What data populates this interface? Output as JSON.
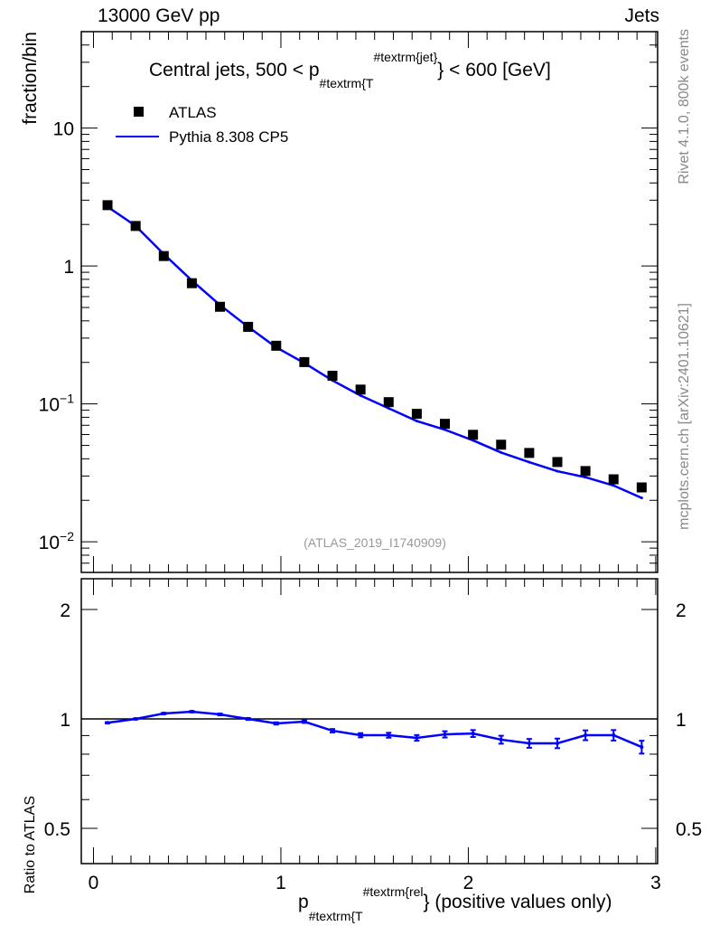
{
  "header": {
    "left": "13000 GeV pp",
    "right": "Jets"
  },
  "side_labels": {
    "top": "Rivet 4.1.0,  800k events",
    "bottom": "mcplots.cern.ch [arXiv:2401.10621]"
  },
  "chart_data": [
    {
      "type": "scatter",
      "title": "Central jets, 500 < p",
      "title_sub": "#textrm{T",
      "title_sup": "#textrm{jet}",
      "title_tail": "} < 600 [GeV]",
      "ylabel": "fraction/bin",
      "yscale": "log",
      "ylim": [
        0.006,
        50
      ],
      "xlim": [
        -0.065,
        3.01
      ],
      "yticks": [
        {
          "v": 0.01,
          "base": "10",
          "exp": "−2"
        },
        {
          "v": 0.1,
          "base": "10",
          "exp": "−1"
        },
        {
          "v": 1,
          "label": "1"
        },
        {
          "v": 10,
          "label": "10"
        }
      ],
      "watermark": "(ATLAS_2019_I1740909)",
      "legend": {
        "placement": "top-left",
        "entries": [
          "ATLAS",
          "Pythia 8.308 CP5"
        ]
      },
      "x": [
        0.075,
        0.225,
        0.375,
        0.525,
        0.675,
        0.825,
        0.975,
        1.125,
        1.275,
        1.425,
        1.575,
        1.725,
        1.875,
        2.025,
        2.175,
        2.325,
        2.475,
        2.625,
        2.775,
        2.925
      ],
      "series": [
        {
          "name": "ATLAS",
          "color": "#000000",
          "values": [
            2.76,
            1.95,
            1.18,
            0.75,
            0.506,
            0.362,
            0.264,
            0.201,
            0.16,
            0.127,
            0.103,
            0.0847,
            0.0717,
            0.0597,
            0.0506,
            0.0441,
            0.0379,
            0.0326,
            0.0284,
            0.0248
          ]
        },
        {
          "name": "Pythia 8.308 CP5",
          "color": "#0000ff",
          "values": [
            2.69,
            1.95,
            1.22,
            0.785,
            0.521,
            0.362,
            0.257,
            0.198,
            0.148,
            0.115,
            0.093,
            0.0751,
            0.065,
            0.0544,
            0.0444,
            0.0378,
            0.0325,
            0.0294,
            0.0256,
            0.0208
          ]
        }
      ]
    },
    {
      "type": "line",
      "ylabel": "Ratio to ATLAS",
      "xlabel_main": "p",
      "xlabel_sub": "#textrm{T",
      "xlabel_sup": "#textrm{rel",
      "xlabel_tail": "} (positive values only)",
      "yscale": "log",
      "ylim": [
        0.4,
        2.43
      ],
      "yticks": [
        0.5,
        1,
        2
      ],
      "ytick_labels": [
        "0.5",
        "1",
        "2"
      ],
      "xticks": [
        0,
        1,
        2,
        3
      ],
      "xtick_labels": [
        "0",
        "1",
        "2",
        "3"
      ],
      "x": [
        0.075,
        0.225,
        0.375,
        0.525,
        0.675,
        0.825,
        0.975,
        1.125,
        1.275,
        1.425,
        1.575,
        1.725,
        1.875,
        2.025,
        2.175,
        2.325,
        2.475,
        2.625,
        2.775,
        2.925
      ],
      "series": [
        {
          "name": "Pythia 8.308 CP5",
          "color": "#0000ff",
          "values": [
            0.976,
            1.0,
            1.035,
            1.047,
            1.029,
            1.0,
            0.972,
            0.983,
            0.928,
            0.902,
            0.902,
            0.887,
            0.907,
            0.912,
            0.877,
            0.857,
            0.857,
            0.902,
            0.902,
            0.837
          ],
          "errors": [
            0.004,
            0.004,
            0.005,
            0.005,
            0.006,
            0.006,
            0.007,
            0.008,
            0.01,
            0.012,
            0.014,
            0.016,
            0.018,
            0.02,
            0.022,
            0.024,
            0.026,
            0.028,
            0.03,
            0.034
          ]
        }
      ]
    }
  ]
}
